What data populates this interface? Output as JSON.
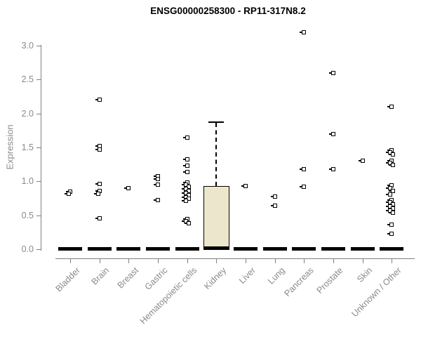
{
  "title": "ENSG00000258300 - RP11-317N8.2",
  "chart_data": {
    "type": "boxplot",
    "title": "ENSG00000258300 - RP11-317N8.2",
    "xlabel": "",
    "ylabel": "Expression",
    "ylim": [
      0,
      3.25
    ],
    "yticks": [
      0,
      0.5,
      1,
      1.5,
      2,
      2.5,
      3
    ],
    "ytick_labels": [
      "0.0",
      "0.5",
      "1.0",
      "1.5",
      "2.0",
      "2.5",
      "3.0"
    ],
    "grid": false,
    "legend": "none",
    "colors": {
      "box_fill": "#ece7cc",
      "box_border": "#000000",
      "point": "#000000",
      "axis": "#808080",
      "tick_label": "#8a8a8a",
      "title": "#000000"
    },
    "categories": [
      {
        "name": "Bladder",
        "q1": 0,
        "median": 0.01,
        "q3": 0,
        "whisker_low": 0,
        "whisker_high": 0,
        "outliers": [
          0.85,
          0.82
        ]
      },
      {
        "name": "Brain",
        "q1": 0,
        "median": 0.01,
        "q3": 0,
        "whisker_low": 0,
        "whisker_high": 0,
        "outliers": [
          2.2,
          1.52,
          1.47,
          0.96,
          0.86,
          0.82,
          0.46
        ]
      },
      {
        "name": "Breast",
        "q1": 0,
        "median": 0.01,
        "q3": 0,
        "whisker_low": 0,
        "whisker_high": 0,
        "outliers": [
          0.9
        ]
      },
      {
        "name": "Gastric",
        "q1": 0,
        "median": 0.01,
        "q3": 0,
        "whisker_low": 0,
        "whisker_high": 0,
        "outliers": [
          1.08,
          1.03,
          0.95,
          0.72
        ]
      },
      {
        "name": "Hematopoietic cells",
        "q1": 0,
        "median": 0.01,
        "q3": 0,
        "whisker_low": 0,
        "whisker_high": 0,
        "outliers": [
          1.64,
          1.32,
          1.23,
          1.14,
          0.98,
          0.95,
          0.92,
          0.89,
          0.86,
          0.83,
          0.8,
          0.77,
          0.74,
          0.71,
          0.44,
          0.41,
          0.38
        ]
      },
      {
        "name": "Kidney",
        "q1": 0,
        "median": 0.02,
        "q3": 0.93,
        "whisker_low": 0,
        "whisker_high": 1.88,
        "outliers": []
      },
      {
        "name": "Liver",
        "q1": 0,
        "median": 0.01,
        "q3": 0,
        "whisker_low": 0,
        "whisker_high": 0,
        "outliers": [
          0.93
        ]
      },
      {
        "name": "Lung",
        "q1": 0,
        "median": 0.01,
        "q3": 0,
        "whisker_low": 0,
        "whisker_high": 0,
        "outliers": [
          0.78,
          0.64
        ]
      },
      {
        "name": "Pancreas",
        "q1": 0,
        "median": 0.01,
        "q3": 0,
        "whisker_low": 0,
        "whisker_high": 0,
        "outliers": [
          3.2,
          1.18,
          0.92
        ]
      },
      {
        "name": "Prostate",
        "q1": 0,
        "median": 0.01,
        "q3": 0,
        "whisker_low": 0,
        "whisker_high": 0,
        "outliers": [
          2.6,
          1.7,
          1.18
        ]
      },
      {
        "name": "Skin",
        "q1": 0,
        "median": 0.01,
        "q3": 0,
        "whisker_low": 0,
        "whisker_high": 0,
        "outliers": [
          1.3
        ]
      },
      {
        "name": "Unknown / Other",
        "q1": 0,
        "median": 0.01,
        "q3": 0,
        "whisker_low": 0,
        "whisker_high": 0,
        "outliers": [
          2.1,
          1.46,
          1.43,
          1.4,
          1.3,
          1.27,
          1.24,
          0.94,
          0.9,
          0.86,
          0.81,
          0.72,
          0.69,
          0.66,
          0.63,
          0.6,
          0.57,
          0.54,
          0.36,
          0.23
        ]
      }
    ]
  }
}
